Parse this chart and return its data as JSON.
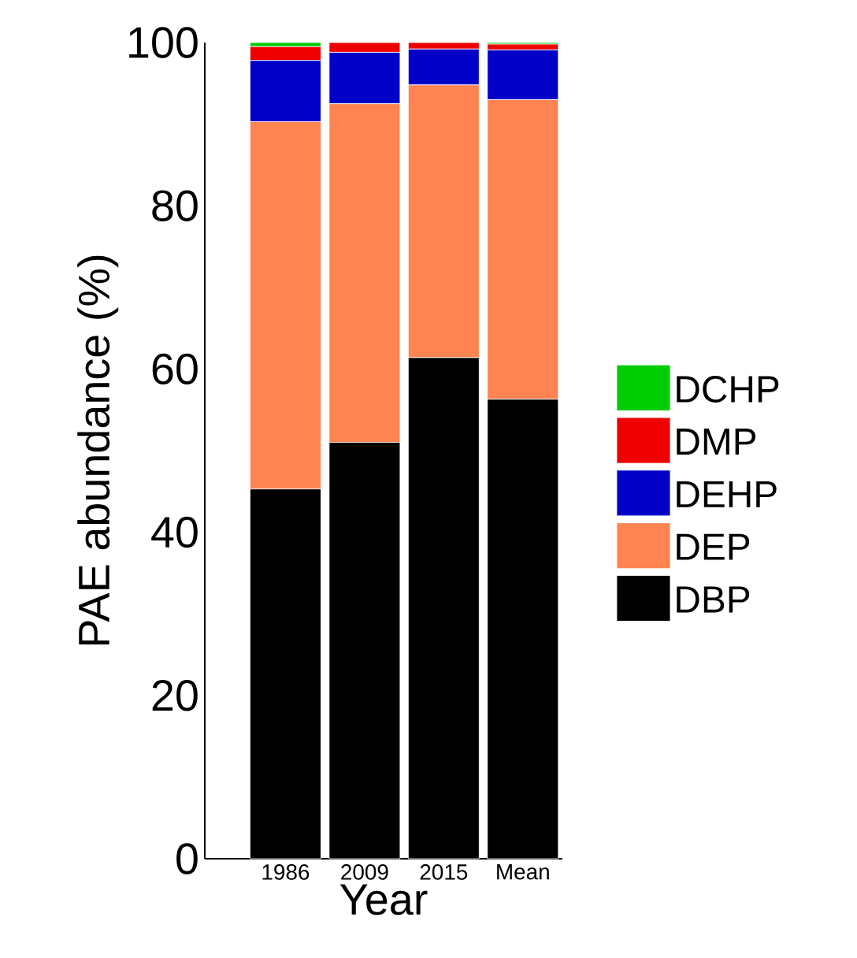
{
  "chart_data": {
    "type": "bar",
    "stacked": true,
    "xlabel": "Year",
    "ylabel": "PAE abundance (%)",
    "categories": [
      "1986",
      "2009",
      "2015",
      "Mean"
    ],
    "series": [
      {
        "name": "DBP",
        "color": "#000000",
        "values": [
          45.3,
          51.0,
          61.4,
          56.3
        ]
      },
      {
        "name": "DEP",
        "color": "#ff8451",
        "values": [
          45.0,
          41.5,
          33.4,
          36.7
        ]
      },
      {
        "name": "DEHP",
        "color": "#0000c8",
        "values": [
          7.5,
          6.3,
          4.4,
          6.1
        ]
      },
      {
        "name": "DMP",
        "color": "#ee0000",
        "values": [
          1.7,
          1.2,
          0.8,
          0.7
        ]
      },
      {
        "name": "DCHP",
        "color": "#00cc00",
        "values": [
          0.5,
          0.0,
          0.0,
          0.2
        ]
      }
    ],
    "ylim": [
      0,
      100
    ],
    "yticks": [
      0,
      20,
      40,
      60,
      80,
      100
    ],
    "legend": "right"
  }
}
